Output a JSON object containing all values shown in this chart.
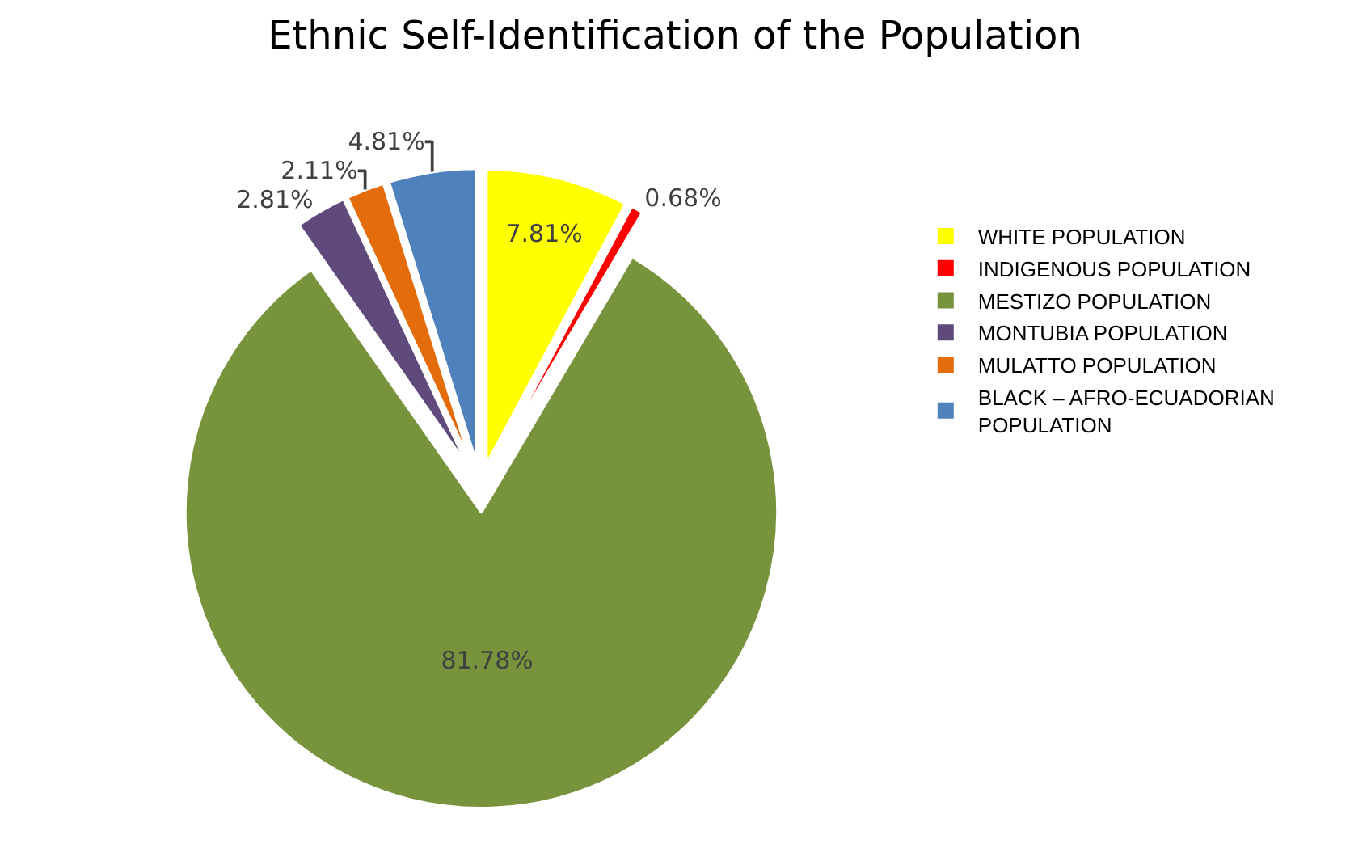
{
  "chart_data": {
    "type": "pie",
    "title": "Ethnic Self-Identification of the Population",
    "categories": [
      "WHITE POPULATION",
      "INDIGENOUS POPULATION",
      "MESTIZO POPULATION",
      "MONTUBIA POPULATION",
      "MULATTO POPULATION",
      "BLACK – AFRO-ECUADORIAN POPULATION"
    ],
    "values": [
      7.81,
      0.68,
      81.78,
      2.81,
      2.11,
      4.81
    ],
    "value_labels": [
      "7.81%",
      "0.68%",
      "81.78%",
      "2.81%",
      "2.11%",
      "4.81%"
    ],
    "colors": [
      "#ffff00",
      "#ff0000",
      "#77933c",
      "#604a7b",
      "#e46c0a",
      "#4f81bd"
    ],
    "legend": "right"
  }
}
